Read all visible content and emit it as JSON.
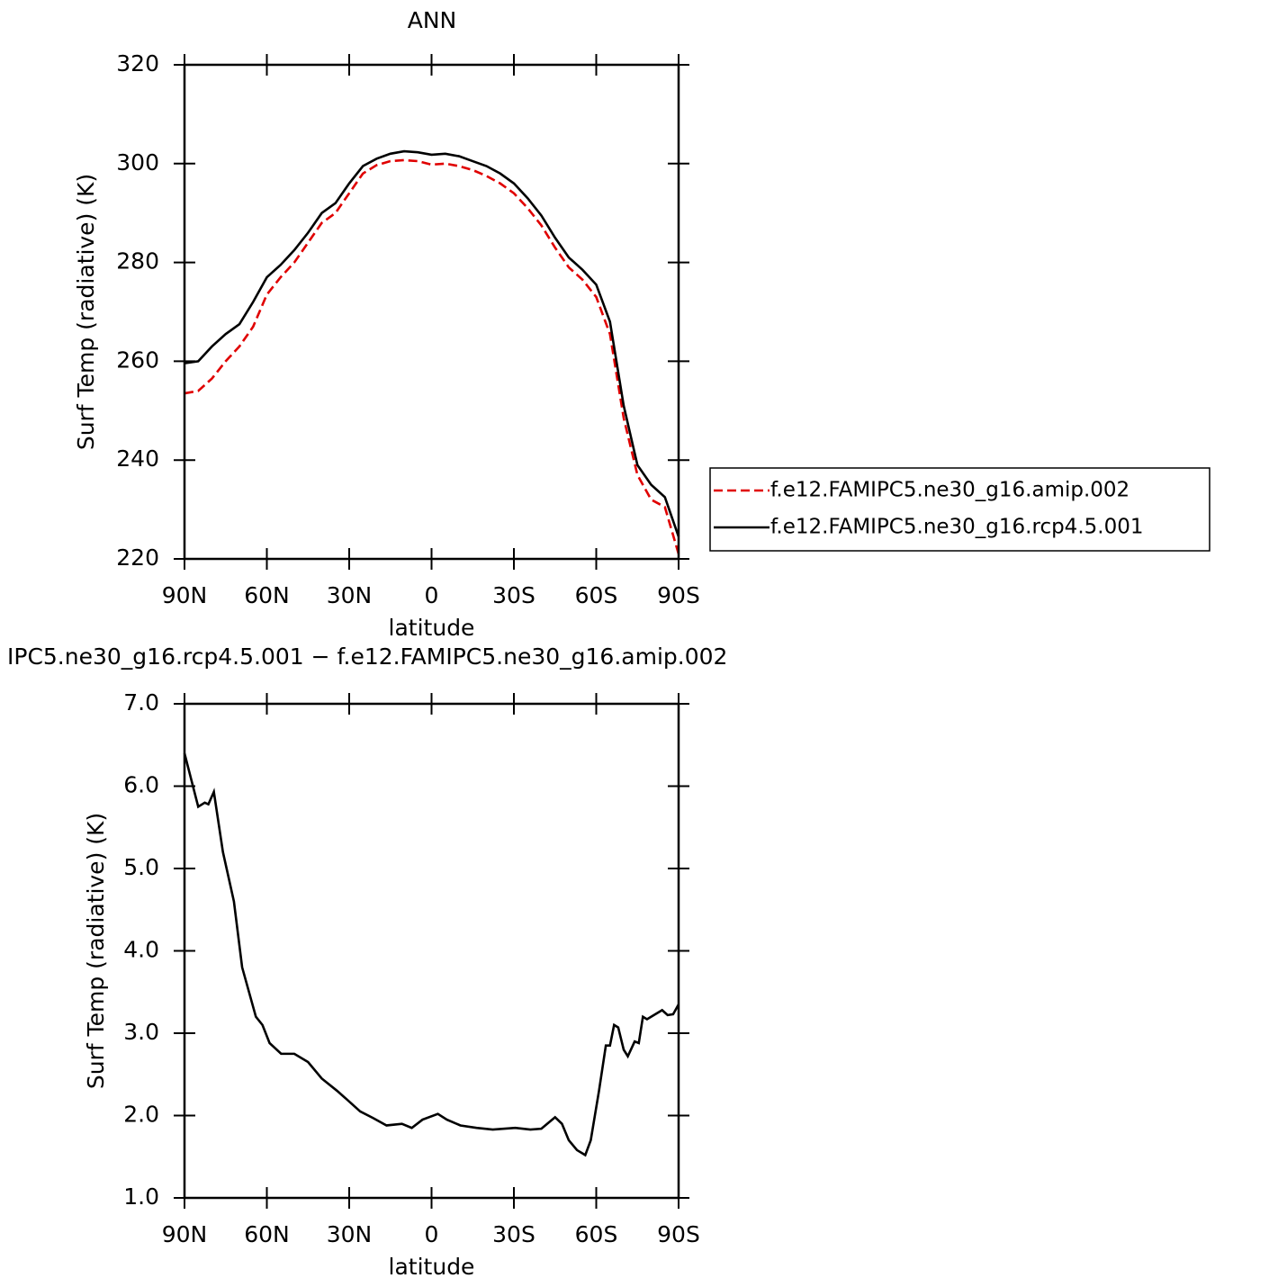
{
  "chart_data": [
    {
      "type": "line",
      "title": "ANN",
      "x_label": "latitude",
      "y_label": "Surf Temp (radiative) (K)",
      "xlim": [
        90,
        -90
      ],
      "ylim": [
        220,
        320
      ],
      "xticks": [
        {
          "value": 90,
          "label": "90N"
        },
        {
          "value": 60,
          "label": "60N"
        },
        {
          "value": 30,
          "label": "30N"
        },
        0,
        {
          "value": -30,
          "label": "30S"
        },
        {
          "value": -60,
          "label": "60S"
        },
        {
          "value": -90,
          "label": "90S"
        }
      ],
      "yticks": [
        220,
        240,
        260,
        280,
        300,
        320
      ],
      "x": [
        90,
        85,
        80,
        75,
        70,
        65,
        60,
        55,
        50,
        45,
        40,
        35,
        30,
        25,
        20,
        15,
        10,
        5,
        0,
        -5,
        -10,
        -15,
        -20,
        -25,
        -30,
        -35,
        -40,
        -45,
        -50,
        -55,
        -60,
        -65,
        -70,
        -75,
        -80,
        -85,
        -90
      ],
      "legend": "right",
      "series": [
        {
          "name": "f.e12.FAMIPC5.ne30_g16.amip.002",
          "color": "#e00000",
          "linestyle": "dashed",
          "values": [
            253.5,
            254,
            256.5,
            260,
            263,
            267,
            273.5,
            277,
            280,
            284,
            288,
            290,
            294,
            298,
            299.7,
            300.5,
            300.7,
            300.5,
            299.8,
            300,
            299.5,
            298.7,
            297.5,
            296,
            294,
            291,
            287.5,
            283,
            279,
            276.5,
            273,
            265.5,
            248.5,
            237,
            232,
            230.5,
            221
          ]
        },
        {
          "name": "f.e12.FAMIPC5.ne30_g16.rcp4.5.001",
          "color": "#000000",
          "linestyle": "solid",
          "values": [
            259.6,
            260,
            263,
            265.5,
            267.5,
            272,
            277,
            279.5,
            282.5,
            286,
            290,
            292,
            296,
            299.5,
            301,
            302,
            302.5,
            302.3,
            301.8,
            302,
            301.5,
            300.5,
            299.5,
            298,
            296,
            293,
            289.5,
            285,
            281,
            278.5,
            275.5,
            268,
            251,
            239,
            235,
            232.5,
            224.5
          ]
        }
      ]
    },
    {
      "type": "line",
      "title": "IPC5.ne30_g16.rcp4.5.001 − f.e12.FAMIPC5.ne30_g16.amip.002",
      "x_label": "latitude",
      "y_label": "Surf Temp (radiative) (K)",
      "xlim": [
        90,
        -90
      ],
      "ylim": [
        1,
        7
      ],
      "xticks": [
        {
          "value": 90,
          "label": "90N"
        },
        {
          "value": 60,
          "label": "60N"
        },
        {
          "value": 30,
          "label": "30N"
        },
        0,
        {
          "value": -30,
          "label": "30S"
        },
        {
          "value": -60,
          "label": "60S"
        },
        {
          "value": -90,
          "label": "90S"
        }
      ],
      "yticks": [
        {
          "value": 1,
          "label": "1.0"
        },
        {
          "value": 2,
          "label": "2.0"
        },
        {
          "value": 3,
          "label": "3.0"
        },
        {
          "value": 4,
          "label": "4.0"
        },
        {
          "value": 5,
          "label": "5.0"
        },
        {
          "value": 6,
          "label": "6.0"
        },
        {
          "value": 7,
          "label": "7.0"
        }
      ],
      "x": [
        90,
        85,
        82.6,
        81.3,
        79.3,
        76,
        72,
        69,
        64,
        61.6,
        59,
        54.8,
        50,
        45,
        40,
        34.4,
        31,
        26,
        21.3,
        16.4,
        10.8,
        7.2,
        3.3,
        -2.3,
        -5.6,
        -10.5,
        -16.4,
        -22.3,
        -30.5,
        -36,
        -40,
        -45,
        -47.5,
        -50,
        -53,
        -56,
        -58,
        -61,
        -63.5,
        -65,
        -66.5,
        -68,
        -70,
        -71.5,
        -74,
        -75.5,
        -77,
        -78.5,
        -81,
        -84,
        -86,
        -88,
        -90
      ],
      "series": [
        {
          "color": "#000000",
          "linestyle": "solid",
          "values": [
            6.4,
            5.75,
            5.8,
            5.78,
            5.93,
            5.2,
            4.6,
            3.8,
            3.2,
            3.1,
            2.88,
            2.75,
            2.75,
            2.65,
            2.45,
            2.3,
            2.2,
            2.05,
            1.97,
            1.88,
            1.9,
            1.85,
            1.95,
            2.02,
            1.95,
            1.88,
            1.85,
            1.83,
            1.85,
            1.83,
            1.84,
            1.98,
            1.9,
            1.7,
            1.58,
            1.52,
            1.7,
            2.3,
            2.85,
            2.85,
            3.1,
            3.07,
            2.8,
            2.72,
            2.9,
            2.88,
            3.2,
            3.17,
            3.22,
            3.28,
            3.22,
            3.23,
            3.35
          ]
        }
      ]
    }
  ]
}
